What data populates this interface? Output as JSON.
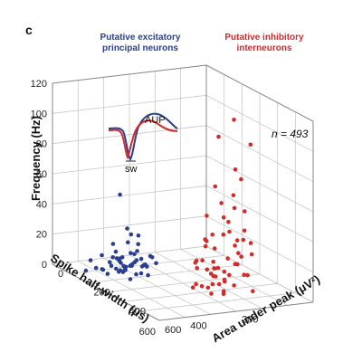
{
  "panel_label": "c",
  "chart_data": {
    "type": "scatter",
    "subtype": "3d-scatter",
    "zlabel": "Frequency (Hz)",
    "xlabel": "Area under peak (μV²)",
    "ylabel": "Spike half-width (μs)",
    "zlim": [
      0,
      120
    ],
    "xlim": [
      0,
      600
    ],
    "ylim": [
      0,
      600
    ],
    "z_ticks": [
      "0",
      "20",
      "40",
      "60",
      "80",
      "100",
      "120"
    ],
    "x_ticks": [
      "0",
      "200",
      "400",
      "600"
    ],
    "y_ticks": [
      "200",
      "400",
      "600"
    ],
    "grid": true,
    "groups": [
      {
        "name_line1": "Putative excitatory",
        "name_line2": "principal neurons",
        "color": "#2a3f8f",
        "points": [
          [
            120,
            380,
            2
          ],
          [
            140,
            420,
            4
          ],
          [
            160,
            400,
            6
          ],
          [
            180,
            450,
            3
          ],
          [
            100,
            350,
            8
          ],
          [
            200,
            480,
            5
          ],
          [
            130,
            360,
            12
          ],
          [
            150,
            440,
            2
          ],
          [
            170,
            390,
            9
          ],
          [
            110,
            410,
            4
          ],
          [
            190,
            370,
            7
          ],
          [
            140,
            500,
            3
          ],
          [
            160,
            330,
            10
          ],
          [
            120,
            460,
            6
          ],
          [
            180,
            420,
            15
          ],
          [
            100,
            440,
            2
          ],
          [
            130,
            520,
            4
          ],
          [
            150,
            370,
            18
          ],
          [
            210,
            400,
            3
          ],
          [
            170,
            470,
            5
          ],
          [
            90,
            390,
            6
          ],
          [
            140,
            340,
            3
          ],
          [
            200,
            430,
            8
          ],
          [
            120,
            490,
            2
          ],
          [
            160,
            460,
            11
          ],
          [
            110,
            330,
            5
          ],
          [
            180,
            510,
            3
          ],
          [
            150,
            410,
            20
          ],
          [
            130,
            430,
            7
          ],
          [
            170,
            350,
            4
          ],
          [
            60,
            380,
            3
          ],
          [
            240,
            440,
            5
          ],
          [
            90,
            470,
            9
          ],
          [
            220,
            380,
            2
          ],
          [
            80,
            420,
            6
          ],
          [
            150,
            300,
            4
          ],
          [
            130,
            560,
            3
          ],
          [
            250,
            470,
            3
          ],
          [
            70,
            500,
            5
          ],
          [
            200,
            350,
            12
          ],
          [
            180,
            390,
            26
          ],
          [
            110,
            370,
            22
          ],
          [
            160,
            420,
            30
          ],
          [
            140,
            450,
            14
          ],
          [
            95,
            430,
            16
          ],
          [
            230,
            410,
            9
          ],
          [
            125,
            400,
            2
          ],
          [
            175,
            440,
            4
          ],
          [
            145,
            380,
            6
          ],
          [
            165,
            430,
            3
          ],
          [
            120,
            420,
            50
          ]
        ]
      },
      {
        "name_line1": "Putative inhibitory",
        "name_line2": "interneurons",
        "color": "#d42a2a",
        "points": [
          [
            400,
            250,
            10
          ],
          [
            450,
            200,
            20
          ],
          [
            380,
            300,
            15
          ],
          [
            500,
            280,
            5
          ],
          [
            420,
            180,
            30
          ],
          [
            470,
            320,
            8
          ],
          [
            360,
            220,
            12
          ],
          [
            520,
            240,
            25
          ],
          [
            440,
            260,
            18
          ],
          [
            390,
            200,
            6
          ],
          [
            480,
            160,
            35
          ],
          [
            410,
            300,
            22
          ],
          [
            460,
            230,
            14
          ],
          [
            530,
            300,
            9
          ],
          [
            370,
            260,
            28
          ],
          [
            430,
            150,
            40
          ],
          [
            500,
            200,
            16
          ],
          [
            400,
            330,
            4
          ],
          [
            450,
            280,
            32
          ],
          [
            350,
            240,
            11
          ],
          [
            490,
            250,
            45
          ],
          [
            420,
            220,
            7
          ],
          [
            470,
            190,
            26
          ],
          [
            380,
            180,
            19
          ],
          [
            510,
            330,
            13
          ],
          [
            440,
            310,
            38
          ],
          [
            360,
            290,
            3
          ],
          [
            460,
            170,
            55
          ],
          [
            400,
            210,
            48
          ],
          [
            480,
            300,
            21
          ],
          [
            430,
            240,
            60
          ],
          [
            520,
            200,
            17
          ],
          [
            410,
            160,
            24
          ],
          [
            390,
            270,
            33
          ],
          [
            450,
            330,
            8
          ],
          [
            470,
            260,
            42
          ],
          [
            340,
            200,
            5
          ],
          [
            500,
            170,
            29
          ],
          [
            420,
            290,
            52
          ],
          [
            440,
            200,
            65
          ],
          [
            460,
            300,
            3
          ],
          [
            380,
            240,
            36
          ],
          [
            530,
            260,
            12
          ],
          [
            410,
            250,
            70
          ],
          [
            480,
            220,
            85
          ],
          [
            450,
            140,
            98
          ],
          [
            400,
            170,
            112
          ],
          [
            370,
            300,
            18
          ],
          [
            500,
            320,
            27
          ],
          [
            430,
            280,
            14
          ],
          [
            470,
            240,
            50
          ],
          [
            360,
            180,
            9
          ],
          [
            510,
            210,
            40
          ],
          [
            420,
            330,
            23
          ],
          [
            390,
            150,
            31
          ],
          [
            440,
            170,
            75
          ],
          [
            460,
            210,
            58
          ],
          [
            490,
            290,
            11
          ],
          [
            400,
            230,
            102
          ],
          [
            520,
            180,
            6
          ]
        ]
      }
    ]
  },
  "annotations": {
    "n_label": "n = 493",
    "inset_sw": "sw",
    "inset_aup": "AUP"
  }
}
